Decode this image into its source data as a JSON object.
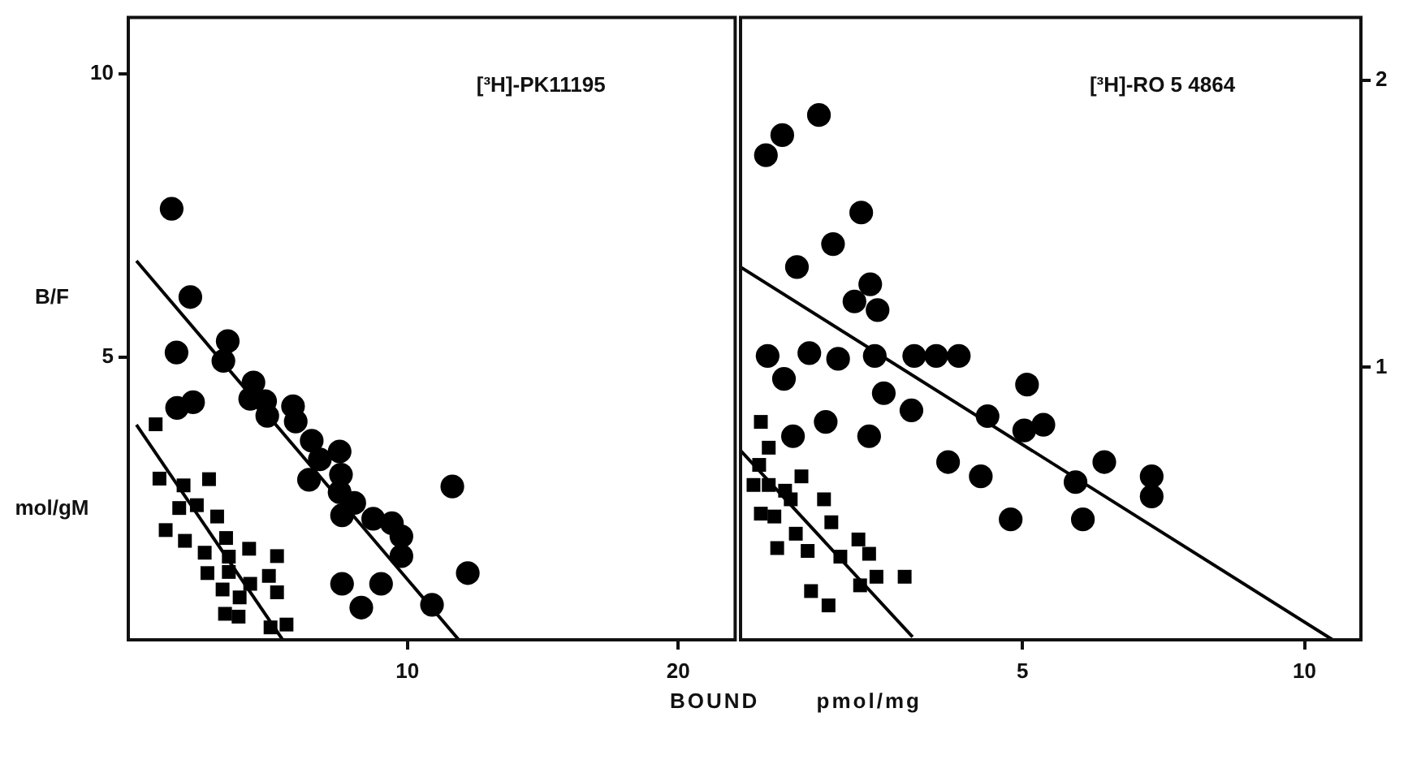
{
  "chart_data": [
    {
      "type": "scatter",
      "title": "[³H]-PK11195",
      "xlabel": "BOUND pmol/mg",
      "ylabel": "B/F mol/gM",
      "xlim": [
        -0.3,
        22.1
      ],
      "xticks": [
        10,
        20
      ],
      "ylim": [
        0,
        11
      ],
      "yticks": [
        5,
        10
      ],
      "grid": false,
      "series": [
        {
          "marker": "circle",
          "color": "#000000",
          "x": [
            1.3,
            1.99,
            1.48,
            3.37,
            3.21,
            1.5,
            2.09,
            4.32,
            4.2,
            4.75,
            4.83,
            5.78,
            5.88,
            6.47,
            6.77,
            7.5,
            6.37,
            7.55,
            7.5,
            8.04,
            7.59,
            8.74,
            9.43,
            9.78,
            9.78,
            11.66,
            12.23,
            7.59,
            9.03,
            8.3,
            10.91
          ],
          "values": [
            7.62,
            6.06,
            5.08,
            5.28,
            4.93,
            4.1,
            4.2,
            4.55,
            4.26,
            4.22,
            3.96,
            4.13,
            3.86,
            3.52,
            3.19,
            3.33,
            2.83,
            2.92,
            2.61,
            2.42,
            2.2,
            2.14,
            2.06,
            1.83,
            1.48,
            2.71,
            1.18,
            0.99,
            0.99,
            0.57,
            0.62
          ]
        },
        {
          "marker": "square",
          "color": "#000000",
          "x": [
            0.71,
            0.85,
            1.74,
            2.68,
            1.58,
            2.23,
            2.98,
            1.08,
            1.79,
            3.31,
            2.52,
            3.41,
            4.16,
            5.19,
            2.62,
            3.18,
            3.81,
            4.2,
            4.89,
            5.19,
            3.27,
            3.77,
            4.95,
            5.54,
            3.41
          ],
          "values": [
            3.81,
            2.85,
            2.73,
            2.84,
            2.33,
            2.38,
            2.18,
            1.94,
            1.75,
            1.8,
            1.54,
            1.47,
            1.61,
            1.48,
            1.18,
            0.89,
            0.75,
            0.99,
            1.13,
            0.84,
            0.46,
            0.41,
            0.22,
            0.27,
            1.2
          ]
        },
        {
          "type": "line",
          "marker": "none",
          "color": "#000000",
          "x": [
            0,
            11.9
          ],
          "values": [
            6.7,
            0
          ]
        },
        {
          "type": "line",
          "marker": "none",
          "color": "#000000",
          "x": [
            0,
            5.4
          ],
          "values": [
            3.8,
            0
          ]
        }
      ]
    },
    {
      "type": "scatter",
      "title": "[³H]-RO 5 4864",
      "xlim": [
        0,
        11
      ],
      "xticks": [
        5,
        10
      ],
      "y2lim": [
        0.05,
        2.22
      ],
      "y2ticks": [
        1,
        2
      ],
      "grid": false,
      "series": [
        {
          "marker": "circle",
          "color": "#000000",
          "axis": "y2",
          "x": [
            0.45,
            0.74,
            1.39,
            2.14,
            1.64,
            1.0,
            2.3,
            2.02,
            2.43,
            0.48,
            1.22,
            1.73,
            2.38,
            3.08,
            3.47,
            3.87,
            0.77,
            2.54,
            3.03,
            1.51,
            0.93,
            2.28,
            5.08,
            4.38,
            5.03,
            5.37,
            3.68,
            4.26,
            4.79,
            5.94,
            6.45,
            6.07,
            7.29,
            7.29
          ],
          "values": [
            1.74,
            1.81,
            1.88,
            1.54,
            1.43,
            1.35,
            1.29,
            1.23,
            1.2,
            1.04,
            1.05,
            1.03,
            1.04,
            1.04,
            1.04,
            1.04,
            0.96,
            0.91,
            0.85,
            0.81,
            0.76,
            0.76,
            0.94,
            0.83,
            0.78,
            0.8,
            0.67,
            0.62,
            0.47,
            0.6,
            0.67,
            0.47,
            0.62,
            0.55
          ]
        },
        {
          "marker": "square",
          "color": "#000000",
          "axis": "y2",
          "x": [
            0.36,
            0.5,
            0.33,
            1.08,
            0.23,
            0.5,
            0.79,
            0.89,
            0.36,
            0.6,
            1.48,
            1.61,
            0.98,
            0.65,
            1.19,
            1.77,
            2.09,
            2.28,
            2.41,
            2.12,
            2.91,
            1.25,
            1.56
          ],
          "values": [
            0.81,
            0.72,
            0.66,
            0.62,
            0.59,
            0.59,
            0.57,
            0.54,
            0.49,
            0.48,
            0.54,
            0.46,
            0.42,
            0.37,
            0.36,
            0.34,
            0.4,
            0.35,
            0.27,
            0.24,
            0.27,
            0.22,
            0.17
          ]
        },
        {
          "type": "line",
          "marker": "none",
          "color": "#000000",
          "axis": "y2",
          "x": [
            0,
            10.5
          ],
          "values": [
            1.35,
            0.05
          ]
        },
        {
          "type": "line",
          "marker": "none",
          "color": "#000000",
          "axis": "y2",
          "x": [
            0,
            3.05
          ],
          "values": [
            0.71,
            0.06
          ]
        }
      ]
    }
  ]
}
